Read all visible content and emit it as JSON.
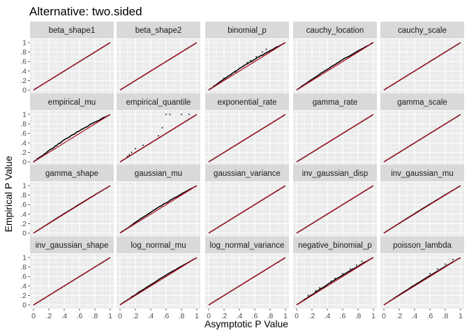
{
  "chart_data": {
    "type": "scatter",
    "title": "Alternative: two.sided",
    "xlabel": "Asymptotic P Value",
    "ylabel": "Empirical P Value",
    "xlim": [
      0,
      1
    ],
    "ylim": [
      0,
      1
    ],
    "x_ticks": [
      "0",
      ".2",
      ".4",
      ".6",
      ".8",
      "1"
    ],
    "y_ticks": [
      "0",
      ".2",
      ".4",
      ".6",
      ".8",
      "1"
    ],
    "grid": true,
    "reference_line": {
      "slope": 1,
      "intercept": 0,
      "color": "#b2182b"
    },
    "point_color": "#000000",
    "panel_background": "#ebebeb",
    "strip_background": "#d9d9d9",
    "facets": [
      {
        "name": "beta_shape1",
        "max_deviation": 0.0,
        "outliers": []
      },
      {
        "name": "beta_shape2",
        "max_deviation": 0.0,
        "outliers": []
      },
      {
        "name": "binomial_p",
        "max_deviation": 0.05,
        "outliers": [
          [
            0.2,
            0.25
          ],
          [
            0.35,
            0.38
          ],
          [
            0.45,
            0.5
          ],
          [
            0.55,
            0.62
          ],
          [
            0.62,
            0.7
          ],
          [
            0.7,
            0.8
          ],
          [
            0.75,
            0.86
          ],
          [
            0.3,
            0.34
          ],
          [
            0.5,
            0.58
          ]
        ]
      },
      {
        "name": "cauchy_location",
        "max_deviation": 0.04,
        "outliers": []
      },
      {
        "name": "cauchy_scale",
        "max_deviation": 0.0,
        "outliers": []
      },
      {
        "name": "empirical_mu",
        "max_deviation": 0.06,
        "outliers": []
      },
      {
        "name": "empirical_quantile",
        "max_deviation": 0.0,
        "outliers": [
          [
            0.1,
            0.12
          ],
          [
            0.12,
            0.15
          ],
          [
            0.15,
            0.2
          ],
          [
            0.2,
            0.28
          ],
          [
            0.3,
            0.35
          ],
          [
            0.5,
            0.55
          ],
          [
            0.55,
            0.72
          ],
          [
            0.6,
            1.0
          ],
          [
            0.65,
            1.0
          ],
          [
            0.8,
            1.0
          ],
          [
            0.9,
            1.0
          ]
        ]
      },
      {
        "name": "exponential_rate",
        "max_deviation": 0.0,
        "outliers": []
      },
      {
        "name": "gamma_rate",
        "max_deviation": 0.0,
        "outliers": []
      },
      {
        "name": "gamma_scale",
        "max_deviation": 0.0,
        "outliers": []
      },
      {
        "name": "gamma_shape",
        "max_deviation": 0.01,
        "outliers": []
      },
      {
        "name": "gaussian_mu",
        "max_deviation": 0.04,
        "outliers": []
      },
      {
        "name": "gaussian_variance",
        "max_deviation": 0.0,
        "outliers": []
      },
      {
        "name": "inv_gaussian_disp",
        "max_deviation": 0.0,
        "outliers": []
      },
      {
        "name": "inv_gaussian_mu",
        "max_deviation": 0.01,
        "outliers": []
      },
      {
        "name": "inv_gaussian_shape",
        "max_deviation": 0.0,
        "outliers": []
      },
      {
        "name": "log_normal_mu",
        "max_deviation": 0.03,
        "outliers": []
      },
      {
        "name": "log_normal_variance",
        "max_deviation": 0.0,
        "outliers": []
      },
      {
        "name": "negative_binomial_p",
        "max_deviation": 0.03,
        "outliers": [
          [
            0.15,
            0.2
          ],
          [
            0.25,
            0.3
          ],
          [
            0.3,
            0.36
          ],
          [
            0.45,
            0.5
          ],
          [
            0.5,
            0.56
          ],
          [
            0.6,
            0.66
          ],
          [
            0.7,
            0.76
          ],
          [
            0.78,
            0.84
          ],
          [
            0.85,
            0.92
          ]
        ]
      },
      {
        "name": "poisson_lambda",
        "max_deviation": 0.02,
        "outliers": [
          [
            0.6,
            0.66
          ],
          [
            0.7,
            0.76
          ],
          [
            0.8,
            0.86
          ],
          [
            0.9,
            0.96
          ]
        ]
      }
    ]
  }
}
